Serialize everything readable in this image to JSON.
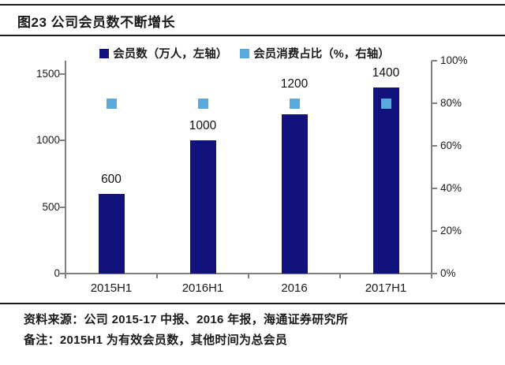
{
  "title": "图23 公司会员数不断增长",
  "legend": [
    {
      "label": "会员数（万人，左轴）",
      "color": "#12127f"
    },
    {
      "label": "会员消费占比（%，右轴）",
      "color": "#58a9dc"
    }
  ],
  "chart_data": {
    "type": "bar",
    "title": "图23 公司会员数不断增长",
    "categories": [
      "2015H1",
      "2016H1",
      "2016",
      "2017H1"
    ],
    "series": [
      {
        "name": "会员数（万人，左轴）",
        "type": "bar",
        "axis": "left",
        "values": [
          600,
          1000,
          1200,
          1400
        ],
        "color": "#12127f"
      },
      {
        "name": "会员消费占比（%，右轴）",
        "type": "scatter-square",
        "axis": "right",
        "values": [
          80,
          80,
          80,
          80
        ],
        "color": "#58a9dc"
      }
    ],
    "data_labels": [
      "600",
      "1000",
      "1200",
      "1400"
    ],
    "left_axis": {
      "min": 0,
      "max": 1600,
      "ticks": [
        0,
        500,
        1000,
        1500
      ]
    },
    "right_axis": {
      "min": 0,
      "max": 100,
      "ticks": [
        "0%",
        "20%",
        "40%",
        "60%",
        "80%",
        "100%"
      ]
    },
    "grid": false,
    "legend_position": "top",
    "axis_color": "#7f7f7f"
  },
  "footer": {
    "source": "资料来源：公司 2015-17 中报、2016 年报，海通证券研究所",
    "note": "备注：2015H1 为有效会员数，其他时间为总会员"
  }
}
